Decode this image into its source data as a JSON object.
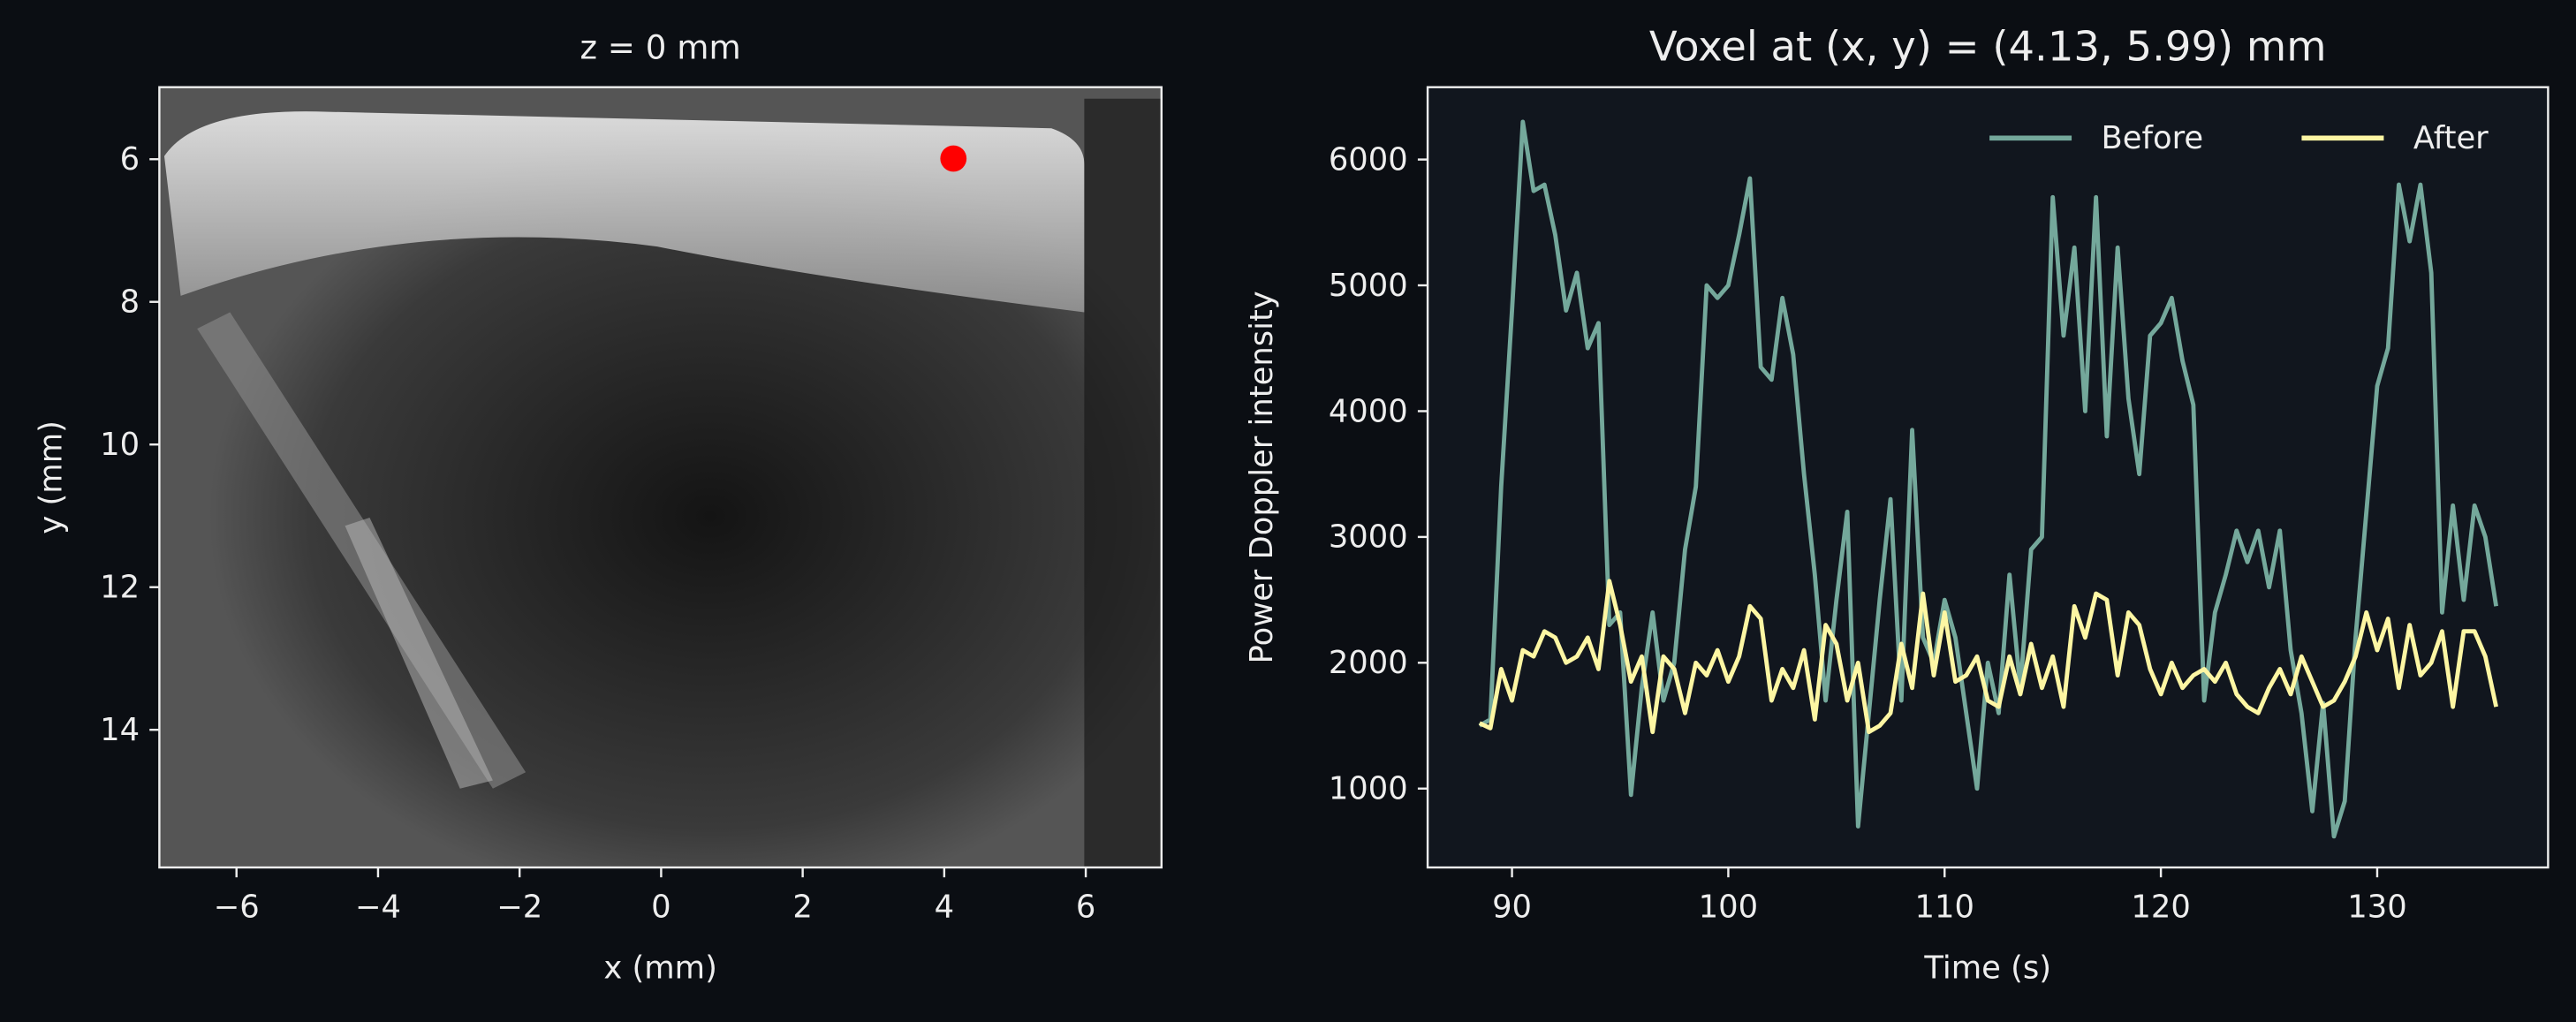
{
  "chart_data": [
    {
      "type": "image",
      "title": "z = 0 mm",
      "xlabel": "x (mm)",
      "ylabel": "y (mm)",
      "xlim": [
        -7.09,
        7.07
      ],
      "ylim": [
        15.93,
        4.99
      ],
      "xticks": [
        {
          "value": -6,
          "label": "−6"
        },
        {
          "value": -4,
          "label": "−4"
        },
        {
          "value": -2,
          "label": "−2"
        },
        0,
        2,
        4,
        6
      ],
      "yticks": [
        6,
        8,
        10,
        12,
        14
      ],
      "marker": {
        "x": 4.13,
        "y": 5.99,
        "color": "#ff0000"
      }
    },
    {
      "type": "line",
      "title": "Voxel at (x, y) = (4.13, 5.99) mm",
      "xlabel": "Time (s)",
      "ylabel": "Power Doppler intensity",
      "xlim": [
        86.1,
        137.9
      ],
      "ylim": [
        373,
        6575
      ],
      "xticks": [
        90,
        100,
        110,
        120,
        130
      ],
      "yticks": [
        1000,
        2000,
        3000,
        4000,
        5000,
        6000
      ],
      "legend": "upper right",
      "x": [
        88.5,
        89,
        89.5,
        90,
        90.5,
        91,
        91.5,
        92,
        92.5,
        93,
        93.5,
        94,
        94.5,
        95,
        95.5,
        96,
        96.5,
        97,
        97.5,
        98,
        98.5,
        99,
        99.5,
        100,
        100.5,
        101,
        101.5,
        102,
        102.5,
        103,
        103.5,
        104,
        104.5,
        105,
        105.5,
        106,
        106.5,
        107,
        107.5,
        108,
        108.5,
        109,
        109.5,
        110,
        110.5,
        111,
        111.5,
        112,
        112.5,
        113,
        113.5,
        114,
        114.5,
        115,
        115.5,
        116,
        116.5,
        117,
        117.5,
        118,
        118.5,
        119,
        119.5,
        120,
        120.5,
        121,
        121.5,
        122,
        122.5,
        123,
        123.5,
        124,
        124.5,
        125,
        125.5,
        126,
        126.5,
        127,
        127.5,
        128,
        128.5,
        129,
        129.5,
        130,
        130.5,
        131,
        131.5,
        132,
        132.5,
        133,
        133.5,
        134,
        134.5,
        135,
        135.5
      ],
      "series": [
        {
          "name": "Before",
          "color": "#74a89b",
          "values": [
            1500,
            1550,
            3400,
            4800,
            6300,
            5750,
            5800,
            5400,
            4800,
            5100,
            4500,
            4700,
            2300,
            2400,
            950,
            1800,
            2400,
            1700,
            2000,
            2900,
            3400,
            5000,
            4900,
            5000,
            5400,
            5850,
            4350,
            4250,
            4900,
            4450,
            3500,
            2700,
            1700,
            2500,
            3200,
            700,
            1600,
            2500,
            3300,
            1700,
            3850,
            2200,
            2000,
            2500,
            2200,
            1600,
            1000,
            2000,
            1600,
            2700,
            1800,
            2900,
            3000,
            5700,
            4600,
            5300,
            4000,
            5700,
            3800,
            5300,
            4100,
            3500,
            4600,
            4700,
            4900,
            4400,
            4050,
            1700,
            2400,
            2700,
            3050,
            2800,
            3050,
            2600,
            3050,
            2100,
            1600,
            820,
            1680,
            620,
            900,
            2200,
            3200,
            4200,
            4500,
            5800,
            5350,
            5800,
            5100,
            2400,
            3250,
            2500,
            3250,
            3000,
            2450
          ]
        },
        {
          "name": "After",
          "color": "#fdf6a3",
          "values": [
            1520,
            1480,
            1950,
            1700,
            2100,
            2050,
            2250,
            2200,
            2000,
            2050,
            2200,
            1950,
            2650,
            2300,
            1850,
            2050,
            1450,
            2050,
            1950,
            1600,
            2000,
            1900,
            2100,
            1850,
            2050,
            2450,
            2350,
            1700,
            1950,
            1800,
            2100,
            1550,
            2300,
            2150,
            1700,
            2000,
            1450,
            1500,
            1600,
            2150,
            1800,
            2550,
            1900,
            2400,
            1850,
            1900,
            2050,
            1700,
            1650,
            2050,
            1750,
            2150,
            1800,
            2050,
            1650,
            2450,
            2200,
            2550,
            2500,
            1900,
            2400,
            2300,
            1950,
            1750,
            2000,
            1800,
            1900,
            1950,
            1850,
            2000,
            1750,
            1650,
            1600,
            1800,
            1950,
            1750,
            2050,
            1850,
            1650,
            1700,
            1850,
            2050,
            2400,
            2100,
            2350,
            1800,
            2300,
            1900,
            2000,
            2250,
            1650,
            2250,
            2250,
            2050,
            1650
          ]
        }
      ]
    }
  ]
}
